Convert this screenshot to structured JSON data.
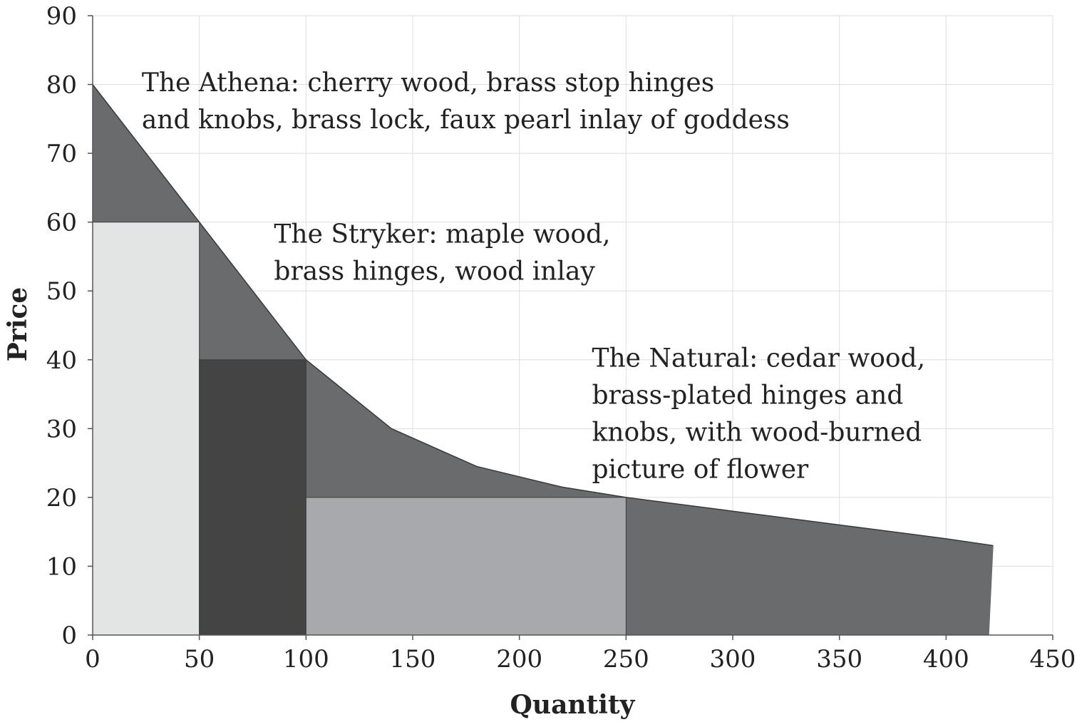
{
  "chart_data": {
    "type": "area",
    "xlabel": "Quantity",
    "ylabel": "Price",
    "xlim": [
      0,
      450
    ],
    "ylim": [
      0,
      90
    ],
    "xticks": [
      "0",
      "50",
      "100",
      "150",
      "200",
      "250",
      "300",
      "350",
      "400",
      "450"
    ],
    "yticks": [
      "0",
      "10",
      "20",
      "30",
      "40",
      "50",
      "60",
      "70",
      "80",
      "90"
    ],
    "grid": true,
    "demand_curve": {
      "x": [
        0,
        50,
        100,
        140,
        180,
        220,
        250,
        300,
        350,
        400,
        422
      ],
      "y": [
        80,
        60,
        40,
        30,
        24.5,
        21.5,
        20,
        18,
        16,
        14,
        13
      ]
    },
    "demand_bottom_x": 420,
    "price_blocks": [
      {
        "x_start": 0,
        "x_end": 50,
        "price": 60,
        "color": "#e3e4e4"
      },
      {
        "x_start": 50,
        "x_end": 100,
        "price": 40,
        "color": "#444445"
      },
      {
        "x_start": 100,
        "x_end": 250,
        "price": 20,
        "color": "#a7a9ac"
      }
    ],
    "surplus_color": "#6a6b6d",
    "annotations": [
      {
        "lines": [
          "The Athena: cherry wood, brass stop hinges",
          "and knobs, brass lock, faux pearl inlay of goddess"
        ],
        "x": 23,
        "y": 79
      },
      {
        "lines": [
          "The Stryker: maple wood,",
          "brass hinges, wood inlay"
        ],
        "x": 85,
        "y": 57
      },
      {
        "lines": [
          "The Natural: cedar wood,",
          "brass-plated hinges and",
          "knobs, with wood-burned",
          "picture of flower"
        ],
        "x": 234,
        "y": 39
      }
    ]
  }
}
